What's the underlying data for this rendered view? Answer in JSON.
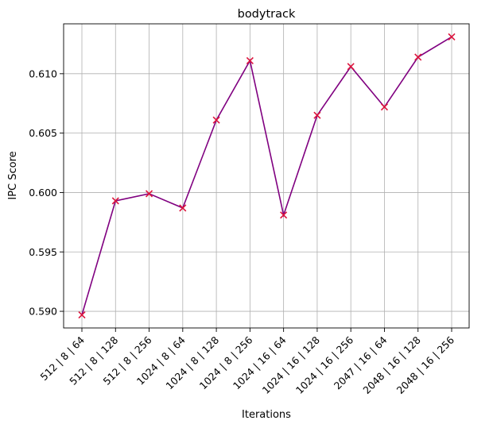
{
  "chart_data": {
    "type": "line",
    "title": "bodytrack",
    "xlabel": "Iterations",
    "ylabel": "IPC Score",
    "categories": [
      "512 | 8 | 64",
      "512 | 8 | 128",
      "512 | 8 | 256",
      "1024 | 8 | 64",
      "1024 | 8 | 128",
      "1024 | 8 | 256",
      "1024 | 16 | 64",
      "1024 | 16 | 128",
      "1024 | 16 | 256",
      "2047 | 16 | 64",
      "2048 | 16 | 128",
      "2048 | 16 | 256"
    ],
    "values": [
      0.5897,
      0.5993,
      0.5999,
      0.5987,
      0.6061,
      0.6111,
      0.5981,
      0.6065,
      0.6106,
      0.6072,
      0.6114,
      0.6131
    ],
    "yticks": [
      0.59,
      0.595,
      0.6,
      0.605,
      0.61
    ],
    "ytick_labels": [
      "0.590",
      "0.595",
      "0.600",
      "0.605",
      "0.610"
    ],
    "ylim": [
      0.5886,
      0.6142
    ],
    "grid": true,
    "line_color": "#800080",
    "marker_color": "#dc143c",
    "marker": "x"
  }
}
